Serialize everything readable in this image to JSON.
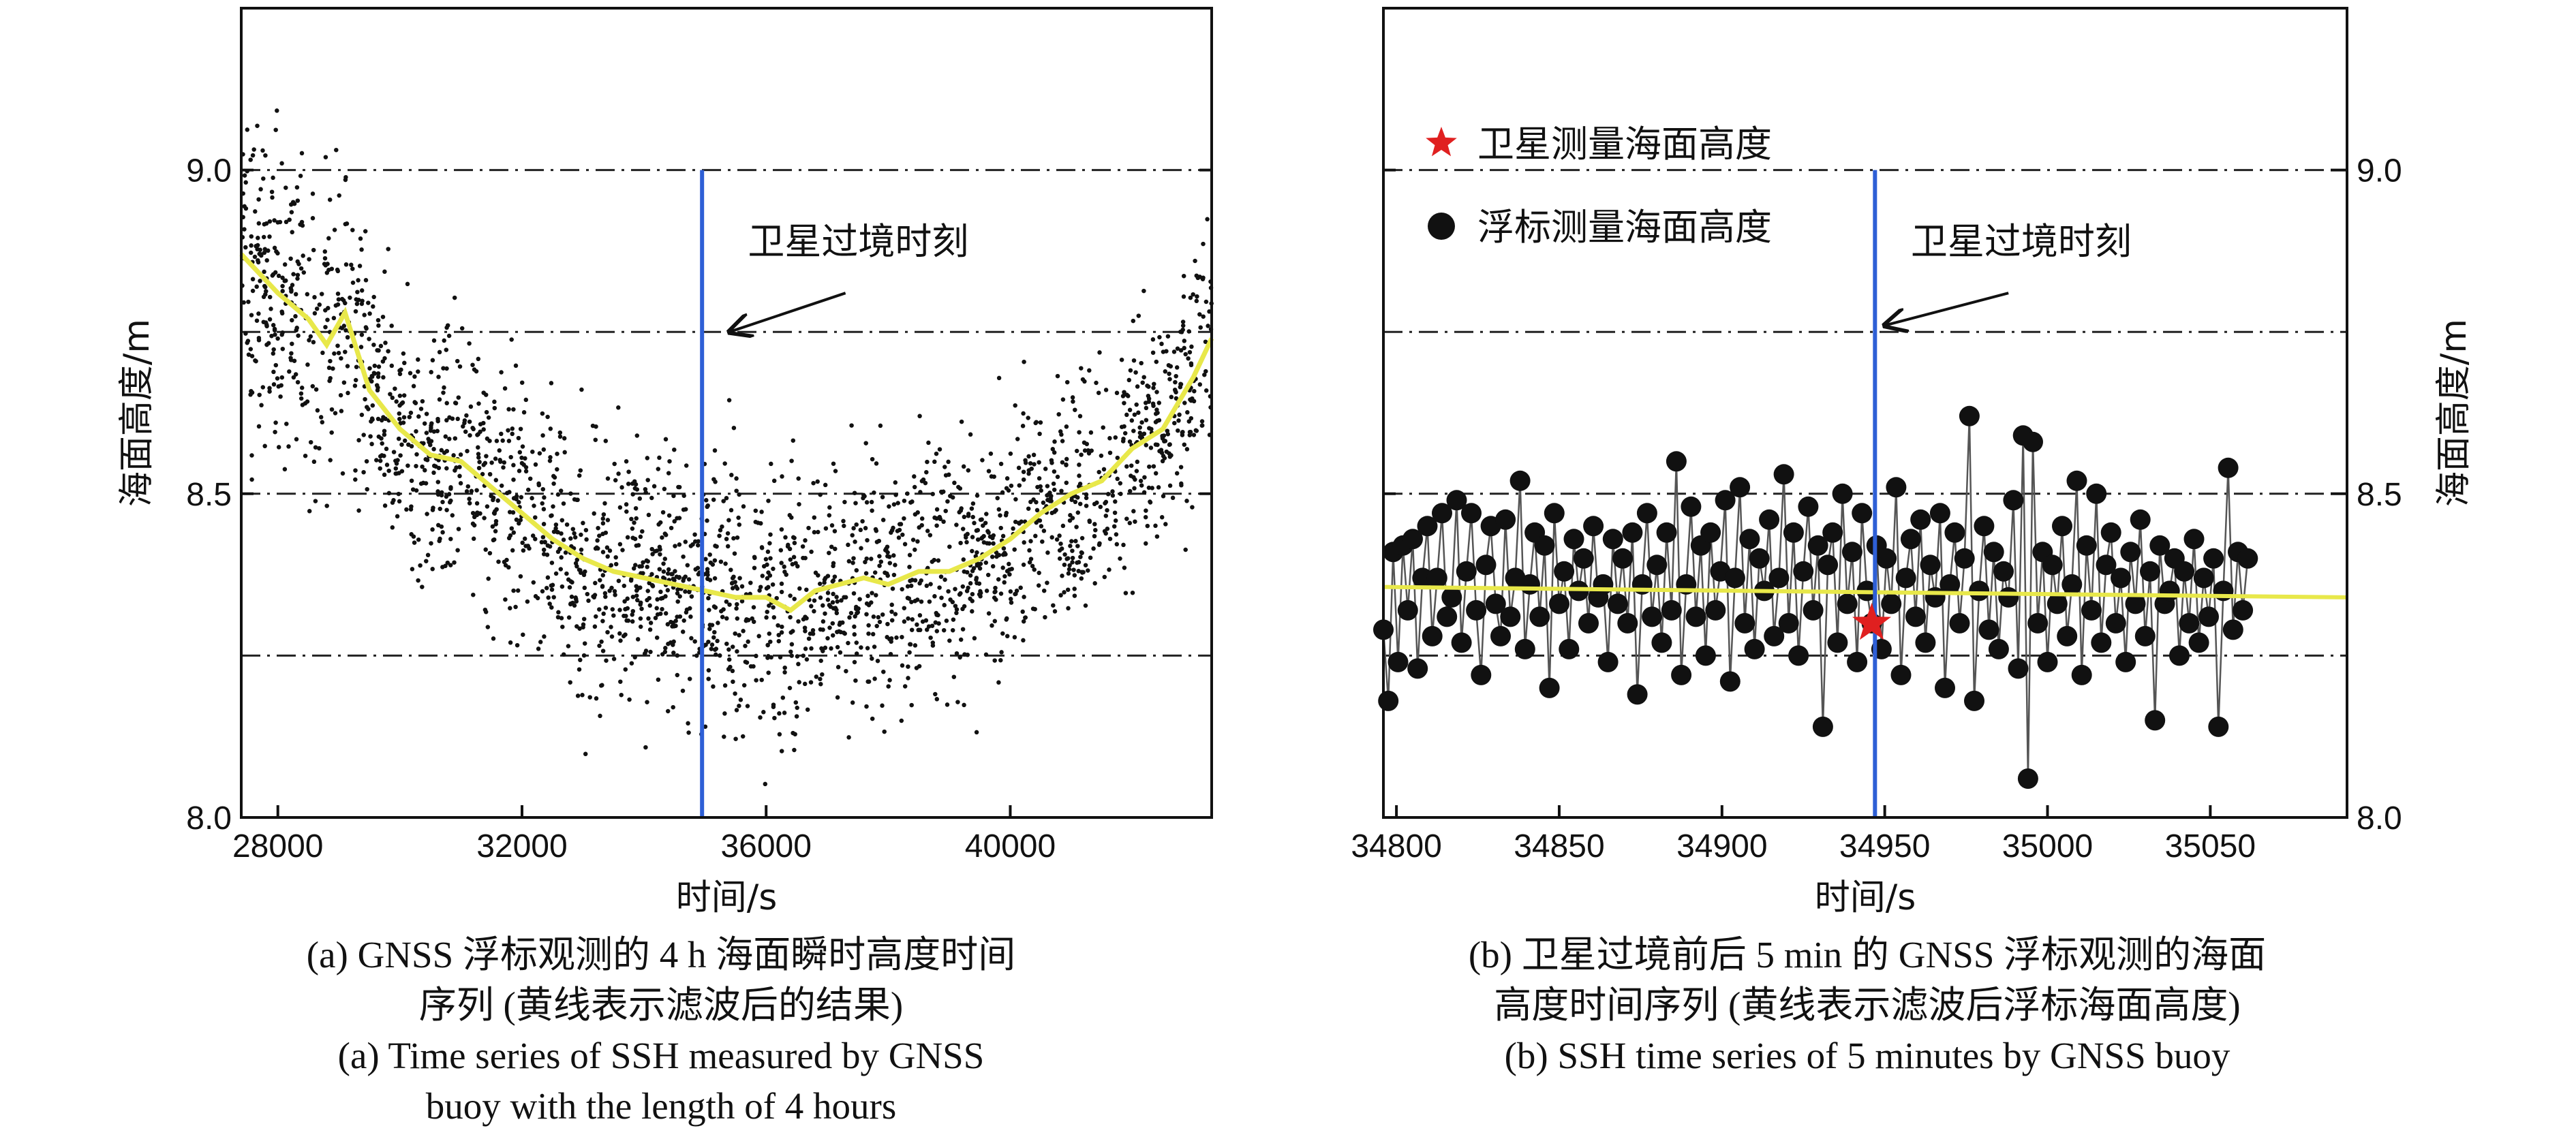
{
  "colors": {
    "scatter": "#111111",
    "filtered_line": "#e8e84a",
    "overpass_line": "#2e5fd6",
    "satellite_star": "#e02020",
    "buoy_points": "#111111",
    "reference_lines": "#222222"
  },
  "captions": {
    "a": {
      "zh_line1": "(a) GNSS 浮标观测的 4 h 海面瞬时高度时间",
      "zh_line2": "序列 (黄线表示滤波后的结果)",
      "en_line1": "(a) Time series of SSH measured by GNSS",
      "en_line2": "buoy with the length of 4 hours"
    },
    "b": {
      "zh_line1": "(b) 卫星过境前后 5 min 的 GNSS 浮标观测的海面",
      "zh_line2": "高度时间序列 (黄线表示滤波后浮标海面高度)",
      "en_line1": "(b) SSH time series of 5 minutes by GNSS buoy"
    }
  },
  "chart_data": [
    {
      "type": "scatter",
      "panel": "a",
      "xlabel": "时间/s",
      "ylabel": "海面高度/m",
      "xlim": [
        27400,
        43300
      ],
      "ylim": [
        8.0,
        9.25
      ],
      "xticks": [
        28000,
        32000,
        36000,
        40000
      ],
      "yticks": [
        8.0,
        8.5,
        9.0
      ],
      "ytick_labels": [
        "8.0",
        "8.5",
        "9.0"
      ],
      "grid": "dash-dot horizontal lines at 8.25, 8.5, 8.75, 9.0",
      "reference_lines": [
        8.25,
        8.5,
        8.75,
        9.0
      ],
      "vertical_line_x": 34950,
      "annotation": {
        "text": "卫星过境时刻",
        "arrow_to": [
          35400,
          8.75
        ]
      },
      "series": [
        {
          "kind": "scatter-cloud",
          "point_count": "~9600 (1.5 s sampling)",
          "envelope_spread_m": 0.14
        },
        {
          "kind": "filtered-line",
          "x": [
            27400,
            28000,
            28500,
            28800,
            29100,
            29500,
            30000,
            30500,
            31000,
            31500,
            32000,
            32500,
            33000,
            33500,
            34000,
            34500,
            35000,
            35500,
            36000,
            36400,
            36800,
            37200,
            37600,
            38000,
            38500,
            39000,
            39500,
            40000,
            40500,
            41000,
            41500,
            42000,
            42500,
            43000,
            43300
          ],
          "y": [
            8.87,
            8.81,
            8.77,
            8.73,
            8.78,
            8.66,
            8.6,
            8.56,
            8.55,
            8.51,
            8.47,
            8.43,
            8.4,
            8.38,
            8.37,
            8.36,
            8.35,
            8.34,
            8.34,
            8.32,
            8.35,
            8.36,
            8.37,
            8.36,
            8.38,
            8.38,
            8.4,
            8.43,
            8.47,
            8.5,
            8.52,
            8.57,
            8.6,
            8.68,
            8.74
          ]
        }
      ]
    },
    {
      "type": "line",
      "panel": "b",
      "xlabel": "时间/s",
      "ylabel": "海面高度/m",
      "xlim": [
        34796,
        35092
      ],
      "ylim": [
        8.0,
        9.25
      ],
      "xticks": [
        34800,
        34850,
        34900,
        34950,
        35000,
        35050
      ],
      "yticks": [
        8.0,
        8.5,
        9.0
      ],
      "ytick_labels": [
        "8.0",
        "8.5",
        "9.0"
      ],
      "y_axis_side": "right",
      "grid": "dash-dot horizontal lines at 8.25, 8.5, 8.75, 9.0",
      "reference_lines": [
        8.25,
        8.5,
        8.75,
        9.0
      ],
      "vertical_line_x": 34947,
      "legend": [
        "卫星测量海面高度",
        "浮标测量海面高度"
      ],
      "legend_position": "top-left",
      "annotation": {
        "text": "卫星过境时刻",
        "arrow_to": [
          34950,
          8.76
        ]
      },
      "satellite_point": {
        "x": 34946,
        "y": 8.3
      },
      "filtered_line": {
        "x": [
          34796,
          35092
        ],
        "y": [
          8.356,
          8.34
        ]
      },
      "buoy_series": {
        "x_start": 34796,
        "x_step": 1.5,
        "values": [
          8.29,
          8.18,
          8.41,
          8.24,
          8.42,
          8.32,
          8.43,
          8.23,
          8.37,
          8.45,
          8.28,
          8.37,
          8.47,
          8.31,
          8.34,
          8.49,
          8.27,
          8.38,
          8.47,
          8.32,
          8.22,
          8.39,
          8.45,
          8.33,
          8.28,
          8.46,
          8.31,
          8.37,
          8.52,
          8.26,
          8.36,
          8.44,
          8.31,
          8.42,
          8.2,
          8.47,
          8.33,
          8.38,
          8.26,
          8.43,
          8.35,
          8.4,
          8.3,
          8.45,
          8.34,
          8.36,
          8.24,
          8.43,
          8.33,
          8.4,
          8.3,
          8.44,
          8.19,
          8.36,
          8.47,
          8.31,
          8.39,
          8.27,
          8.44,
          8.32,
          8.55,
          8.22,
          8.36,
          8.48,
          8.31,
          8.42,
          8.25,
          8.44,
          8.32,
          8.38,
          8.49,
          8.21,
          8.37,
          8.51,
          8.3,
          8.43,
          8.26,
          8.4,
          8.35,
          8.46,
          8.28,
          8.37,
          8.53,
          8.3,
          8.44,
          8.25,
          8.38,
          8.48,
          8.32,
          8.42,
          8.14,
          8.39,
          8.44,
          8.27,
          8.5,
          8.33,
          8.41,
          8.24,
          8.47,
          8.35,
          8.3,
          8.42,
          8.26,
          8.4,
          8.33,
          8.51,
          8.22,
          8.37,
          8.43,
          8.31,
          8.46,
          8.27,
          8.39,
          8.34,
          8.47,
          8.2,
          8.36,
          8.44,
          8.3,
          8.4,
          8.62,
          8.18,
          8.35,
          8.45,
          8.29,
          8.41,
          8.26,
          8.38,
          8.34,
          8.49,
          8.23,
          8.59,
          8.06,
          8.58,
          8.3,
          8.41,
          8.24,
          8.39,
          8.33,
          8.45,
          8.28,
          8.36,
          8.52,
          8.22,
          8.42,
          8.32,
          8.5,
          8.27,
          8.39,
          8.44,
          8.3,
          8.37,
          8.24,
          8.41,
          8.33,
          8.46,
          8.28,
          8.38,
          8.15,
          8.42,
          8.33,
          8.35,
          8.4,
          8.25,
          8.38,
          8.3,
          8.43,
          8.27,
          8.37,
          8.31,
          8.4,
          8.14,
          8.35,
          8.54,
          8.29,
          8.41,
          8.32,
          8.4
        ]
      }
    }
  ]
}
